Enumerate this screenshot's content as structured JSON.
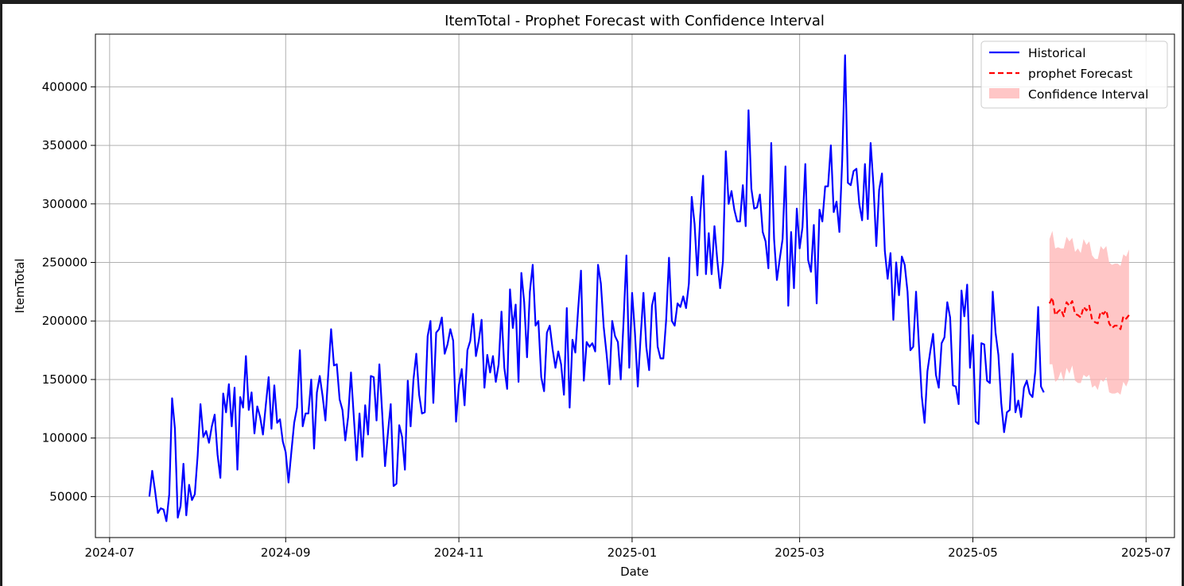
{
  "chart_data": {
    "type": "line",
    "title": "ItemTotal - Prophet Forecast with Confidence Interval",
    "xlabel": "Date",
    "ylabel": "ItemTotal",
    "x_axis_type": "date",
    "xlim": [
      "2024-06-26",
      "2025-07-11"
    ],
    "ylim": [
      15000,
      445000
    ],
    "x_ticks": [
      "2024-07",
      "2024-09",
      "2024-11",
      "2025-01",
      "2025-03",
      "2025-05",
      "2025-07"
    ],
    "y_ticks": [
      "50000",
      "100000",
      "150000",
      "200000",
      "250000",
      "300000",
      "350000",
      "400000"
    ],
    "x_tick_dates": [
      "2024-07-01",
      "2024-09-01",
      "2024-11-01",
      "2025-01-01",
      "2025-03-01",
      "2025-05-01",
      "2025-07-01"
    ],
    "y_tick_values": [
      50000,
      100000,
      150000,
      200000,
      250000,
      300000,
      350000,
      400000
    ],
    "grid": true,
    "legend_position": "upper right",
    "colors": {
      "historical": "#0000ff",
      "forecast": "#ff0000",
      "confidence": "#ffb3b3"
    },
    "series": [
      {
        "name": "Historical",
        "style": "solid",
        "start_date": "2024-07-15",
        "step_days": 1,
        "values": [
          50000,
          72000,
          55000,
          36000,
          40000,
          39000,
          29000,
          52000,
          134000,
          108000,
          32000,
          42000,
          78000,
          34000,
          60000,
          47000,
          52000,
          85000,
          129000,
          101000,
          106000,
          96000,
          110000,
          120000,
          86000,
          66000,
          138000,
          122000,
          146000,
          110000,
          143000,
          73000,
          135000,
          126000,
          170000,
          124000,
          139000,
          104000,
          127000,
          118000,
          103000,
          128000,
          152000,
          108000,
          145000,
          113000,
          116000,
          97000,
          88000,
          62000,
          88000,
          113000,
          126000,
          175000,
          110000,
          121000,
          121000,
          150000,
          91000,
          139000,
          153000,
          136000,
          115000,
          155000,
          193000,
          162000,
          163000,
          133000,
          124000,
          98000,
          118000,
          156000,
          118000,
          81000,
          121000,
          84000,
          128000,
          103000,
          153000,
          152000,
          115000,
          163000,
          121000,
          76000,
          104000,
          129000,
          59000,
          61000,
          111000,
          101000,
          73000,
          149000,
          110000,
          150000,
          172000,
          137000,
          121000,
          122000,
          187000,
          200000,
          130000,
          190000,
          193000,
          203000,
          172000,
          180000,
          193000,
          183000,
          114000,
          145000,
          159000,
          128000,
          175000,
          183000,
          206000,
          170000,
          183000,
          201000,
          143000,
          171000,
          156000,
          170000,
          148000,
          163000,
          208000,
          160000,
          142000,
          227000,
          194000,
          214000,
          148000,
          241000,
          216000,
          169000,
          225000,
          248000,
          196000,
          200000,
          152000,
          140000,
          190000,
          196000,
          176000,
          160000,
          174000,
          163000,
          137000,
          211000,
          126000,
          184000,
          173000,
          210000,
          243000,
          149000,
          182000,
          178000,
          181000,
          174000,
          248000,
          232000,
          195000,
          172000,
          146000,
          200000,
          187000,
          182000,
          150000,
          200000,
          256000,
          160000,
          224000,
          190000,
          144000,
          186000,
          224000,
          178000,
          158000,
          213000,
          224000,
          178000,
          168000,
          168000,
          201000,
          254000,
          200000,
          196000,
          215000,
          212000,
          221000,
          211000,
          232000,
          306000,
          283000,
          239000,
          290000,
          324000,
          240000,
          275000,
          240000,
          281000,
          252000,
          228000,
          251000,
          345000,
          300000,
          311000,
          295000,
          285000,
          285000,
          316000,
          281000,
          380000,
          313000,
          296000,
          297000,
          308000,
          276000,
          268000,
          245000,
          352000,
          270000,
          235000,
          253000,
          270000,
          332000,
          213000,
          276000,
          228000,
          296000,
          262000,
          280000,
          334000,
          252000,
          242000,
          282000,
          215000,
          295000,
          285000,
          315000,
          315000,
          350000,
          293000,
          302000,
          276000,
          338000,
          427000,
          318000,
          316000,
          328000,
          330000,
          300000,
          286000,
          334000,
          287000,
          352000,
          316000,
          264000,
          312000,
          326000,
          260000,
          236000,
          258000,
          201000,
          250000,
          222000,
          255000,
          248000,
          225000,
          175000,
          178000,
          225000,
          180000,
          136000,
          113000,
          157000,
          174000,
          189000,
          154000,
          143000,
          181000,
          186000,
          216000,
          203000,
          145000,
          144000,
          129000,
          226000,
          204000,
          231000,
          160000,
          188000,
          114000,
          112000,
          181000,
          180000,
          149000,
          147000,
          225000,
          190000,
          171000,
          130000,
          105000,
          122000,
          124000,
          172000,
          122000,
          132000,
          118000,
          143000,
          149000,
          138000,
          135000,
          157000,
          212000,
          144000,
          139000
        ]
      },
      {
        "name": "prophet Forecast",
        "style": "dashed",
        "start_date": "2025-05-28",
        "step_days": 1,
        "values": [
          215000,
          220000,
          205000,
          208000,
          210000,
          204000,
          216000,
          213000,
          217000,
          206000,
          205000,
          203000,
          212000,
          209000,
          213000,
          201000,
          199000,
          198000,
          208000,
          206000,
          209000,
          198000,
          194000,
          196000,
          196000,
          193000,
          204000,
          202000,
          205000
        ]
      }
    ],
    "confidence_interval": {
      "name": "Confidence Interval",
      "start_date": "2025-05-28",
      "step_days": 1,
      "upper": [
        270000,
        277000,
        262000,
        263000,
        262000,
        262000,
        272000,
        268000,
        271000,
        259000,
        262000,
        258000,
        270000,
        265000,
        268000,
        256000,
        253000,
        253000,
        264000,
        261000,
        264000,
        250000,
        248000,
        249000,
        249000,
        247000,
        257000,
        255000,
        261000
      ],
      "lower": [
        163000,
        163000,
        148000,
        150000,
        157000,
        148000,
        160000,
        155000,
        162000,
        149000,
        147000,
        147000,
        154000,
        152000,
        154000,
        143000,
        145000,
        141000,
        150000,
        148000,
        152000,
        139000,
        138000,
        138000,
        139000,
        137000,
        148000,
        144000,
        150000
      ]
    }
  }
}
